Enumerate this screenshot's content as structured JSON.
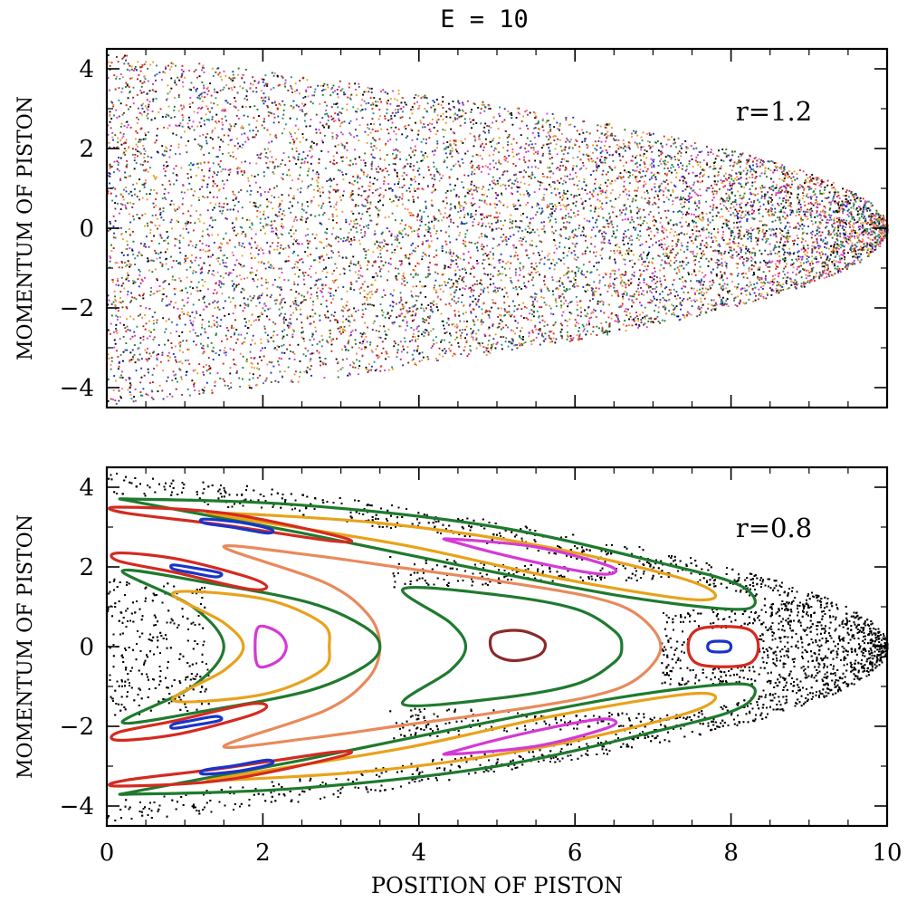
{
  "title": "E = 10",
  "xlabel": "POSITION OF PISTON",
  "chart_data": [
    {
      "type": "scatter",
      "annotation": "r=1.2",
      "ylabel": "MOMENTUM OF PISTON",
      "xlim": [
        0,
        10
      ],
      "ylim": [
        -4.5,
        4.5
      ],
      "x_ticks": [
        0,
        2,
        4,
        6,
        8,
        10
      ],
      "y_ticks": [
        -4,
        -2,
        0,
        2,
        4
      ],
      "y_tick_labels": [
        "−4",
        "−2",
        "0",
        "2",
        "4"
      ],
      "show_x_tick_labels": false,
      "grid": false,
      "energy_boundary": "|p| <= sqrt(2*(E - x))",
      "points": "chaotic sea filling entire energy shell, many colored trajectories",
      "colors": [
        "#000000",
        "#d42a1f",
        "#1a34c8",
        "#e8a21a",
        "#1f7a2e",
        "#d43ad4",
        "#e88a5c",
        "#8a2a2a",
        "#2a8a7a"
      ]
    },
    {
      "type": "line",
      "annotation": "r=0.8",
      "ylabel": "MOMENTUM OF PISTON",
      "xlabel": "POSITION OF PISTON",
      "xlim": [
        0,
        10
      ],
      "ylim": [
        -4.5,
        4.5
      ],
      "x_ticks": [
        0,
        2,
        4,
        6,
        8,
        10
      ],
      "x_tick_labels": [
        "0",
        "2",
        "4",
        "6",
        "8",
        "10"
      ],
      "y_ticks": [
        -4,
        -2,
        0,
        2,
        4
      ],
      "y_tick_labels": [
        "−4",
        "−2",
        "0",
        "2",
        "4"
      ],
      "grid": false,
      "chaotic_sea_color": "#000000",
      "series": [
        {
          "color": "#e88a5c",
          "kind": "chevron",
          "points": [
            [
              1.5,
              2.5
            ],
            [
              2.6,
              2.3
            ],
            [
              3.7,
              2.0
            ],
            [
              5.0,
              1.65
            ],
            [
              6.2,
              1.25
            ],
            [
              6.8,
              0.8
            ],
            [
              7.1,
              0
            ],
            [
              6.8,
              -0.8
            ],
            [
              6.2,
              -1.25
            ],
            [
              5.0,
              -1.65
            ],
            [
              3.7,
              -2.0
            ],
            [
              2.6,
              -2.3
            ],
            [
              1.5,
              -2.5
            ],
            [
              2.8,
              -1.6
            ],
            [
              3.35,
              -0.8
            ],
            [
              3.5,
              0
            ],
            [
              3.35,
              0.8
            ],
            [
              2.8,
              1.6
            ]
          ]
        },
        {
          "color": "#1f7a2e",
          "kind": "chevron",
          "points": [
            [
              0.2,
              1.9
            ],
            [
              1.3,
              1.6
            ],
            [
              2.6,
              1.1
            ],
            [
              3.3,
              0.5
            ],
            [
              3.5,
              0
            ],
            [
              3.3,
              -0.5
            ],
            [
              2.6,
              -1.1
            ],
            [
              1.3,
              -1.6
            ],
            [
              0.2,
              -1.9
            ],
            [
              1.1,
              -1.0
            ],
            [
              1.5,
              0
            ],
            [
              1.1,
              1.0
            ]
          ]
        },
        {
          "color": "#e8a21a",
          "kind": "chevron",
          "points": [
            [
              0.85,
              1.35
            ],
            [
              2.0,
              1.2
            ],
            [
              2.75,
              0.6
            ],
            [
              2.85,
              0
            ],
            [
              2.75,
              -0.6
            ],
            [
              2.0,
              -1.2
            ],
            [
              0.85,
              -1.35
            ],
            [
              1.5,
              -0.6
            ],
            [
              1.75,
              0
            ],
            [
              1.5,
              0.6
            ]
          ]
        },
        {
          "color": "#d43ad4",
          "kind": "loop",
          "points": [
            [
              1.95,
              0.5
            ],
            [
              2.2,
              0.35
            ],
            [
              2.3,
              0
            ],
            [
              2.2,
              -0.35
            ],
            [
              1.95,
              -0.5
            ],
            [
              1.9,
              0
            ]
          ]
        },
        {
          "color": "#1f7a2e",
          "kind": "chevron",
          "points": [
            [
              3.8,
              1.45
            ],
            [
              5.0,
              1.3
            ],
            [
              6.0,
              0.95
            ],
            [
              6.5,
              0.4
            ],
            [
              6.6,
              0
            ],
            [
              6.5,
              -0.4
            ],
            [
              6.0,
              -0.95
            ],
            [
              5.0,
              -1.3
            ],
            [
              3.8,
              -1.45
            ],
            [
              4.4,
              -0.6
            ],
            [
              4.6,
              0
            ],
            [
              4.4,
              0.6
            ]
          ]
        },
        {
          "color": "#8a2a2a",
          "kind": "loop",
          "points": [
            [
              4.95,
              0.3
            ],
            [
              5.3,
              0.4
            ],
            [
              5.6,
              0.15
            ],
            [
              5.55,
              -0.2
            ],
            [
              5.2,
              -0.35
            ],
            [
              4.95,
              -0.15
            ]
          ]
        },
        {
          "color": "#d42a1f",
          "kind": "loop",
          "points": [
            [
              7.6,
              0.45
            ],
            [
              8.2,
              0.45
            ],
            [
              8.35,
              0
            ],
            [
              8.2,
              -0.45
            ],
            [
              7.6,
              -0.45
            ],
            [
              7.45,
              0
            ]
          ]
        },
        {
          "color": "#1a34c8",
          "kind": "loop",
          "points": [
            [
              7.75,
              0.12
            ],
            [
              7.95,
              0.12
            ],
            [
              8.0,
              0
            ],
            [
              7.95,
              -0.12
            ],
            [
              7.75,
              -0.12
            ],
            [
              7.7,
              0
            ]
          ]
        },
        {
          "color": "#1f7a2e",
          "kind": "band",
          "points": [
            [
              0.4,
              3.7
            ],
            [
              2.5,
              3.55
            ],
            [
              5.0,
              3.0
            ],
            [
              7.2,
              2.05
            ],
            [
              8.1,
              1.55
            ],
            [
              8.3,
              1.05
            ],
            [
              7.9,
              0.95
            ],
            [
              6.5,
              1.3
            ],
            [
              4.5,
              2.05
            ],
            [
              2.5,
              2.85
            ],
            [
              0.45,
              3.6
            ]
          ]
        },
        {
          "color": "#e8a21a",
          "kind": "band",
          "points": [
            [
              1.5,
              3.35
            ],
            [
              3.5,
              3.1
            ],
            [
              5.5,
              2.55
            ],
            [
              7.3,
              1.75
            ],
            [
              7.8,
              1.3
            ],
            [
              7.4,
              1.2
            ],
            [
              5.7,
              1.75
            ],
            [
              3.8,
              2.55
            ],
            [
              1.6,
              3.25
            ]
          ]
        },
        {
          "color": "#d43ad4",
          "kind": "band",
          "points": [
            [
              4.4,
              2.7
            ],
            [
              5.5,
              2.5
            ],
            [
              6.4,
              2.05
            ],
            [
              6.5,
              1.85
            ],
            [
              6.2,
              1.85
            ],
            [
              5.3,
              2.2
            ],
            [
              4.5,
              2.6
            ]
          ]
        },
        {
          "color": "#d42a1f",
          "kind": "band",
          "points": [
            [
              0.15,
              3.5
            ],
            [
              1.5,
              3.35
            ],
            [
              3.0,
              2.75
            ],
            [
              2.9,
              2.65
            ],
            [
              1.5,
              3.05
            ],
            [
              0.25,
              3.35
            ]
          ]
        },
        {
          "color": "#1a34c8",
          "kind": "band",
          "points": [
            [
              1.25,
              3.2
            ],
            [
              1.7,
              3.12
            ],
            [
              2.1,
              2.95
            ],
            [
              2.05,
              2.85
            ],
            [
              1.6,
              3.0
            ],
            [
              1.25,
              3.1
            ]
          ]
        },
        {
          "color": "#d42a1f",
          "kind": "band",
          "points": [
            [
              0.15,
              2.35
            ],
            [
              0.9,
              2.2
            ],
            [
              1.8,
              1.75
            ],
            [
              2.05,
              1.5
            ],
            [
              1.8,
              1.45
            ],
            [
              0.9,
              1.85
            ],
            [
              0.15,
              2.15
            ]
          ]
        },
        {
          "color": "#1a34c8",
          "kind": "band",
          "points": [
            [
              0.85,
              2.05
            ],
            [
              1.1,
              1.98
            ],
            [
              1.45,
              1.85
            ],
            [
              1.4,
              1.75
            ],
            [
              1.1,
              1.85
            ],
            [
              0.85,
              1.95
            ]
          ]
        }
      ]
    }
  ]
}
